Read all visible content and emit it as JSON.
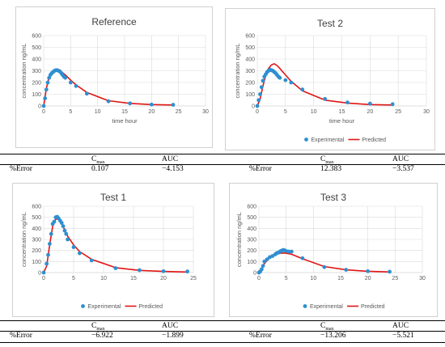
{
  "x_axis_label": "time hour",
  "y_axis_label": "concentration ng/mL",
  "legend": {
    "experimental": "Experimental",
    "predicted": "Predicted"
  },
  "colors": {
    "experimental": "#2f8fd0",
    "predicted": "#e01414"
  },
  "tables": [
    {
      "header": {
        "cmax": "Cmax",
        "auc": "AUC"
      },
      "left": {
        "label": "%Error",
        "cmax": "0.107",
        "auc": "−4.153"
      },
      "right": {
        "label": "%Error",
        "cmax": "12.383",
        "auc": "−3.537"
      }
    },
    {
      "header": {
        "cmax": "Cmax",
        "auc": "AUC"
      },
      "left": {
        "label": "%Error",
        "cmax": "−6.922",
        "auc": "−1.899"
      },
      "right": {
        "label": "%Error",
        "cmax": "−13.206",
        "auc": "−5.521"
      }
    }
  ],
  "chart_data": [
    {
      "type": "scatter",
      "title": "Reference",
      "xlabel": "time hour",
      "ylabel": "concentration ng/mL",
      "xlim": [
        0,
        30
      ],
      "ylim": [
        0,
        600
      ],
      "xticks": [
        0,
        5,
        10,
        15,
        20,
        25,
        30
      ],
      "yticks": [
        0,
        100,
        200,
        300,
        400,
        500,
        600
      ],
      "grid": true,
      "legend": "none",
      "series": [
        {
          "name": "Experimental",
          "kind": "scatter",
          "x": [
            0,
            0.25,
            0.5,
            0.75,
            1,
            1.25,
            1.5,
            1.75,
            2,
            2.25,
            2.5,
            2.75,
            3,
            3.25,
            3.5,
            3.75,
            4,
            5,
            6,
            8,
            12,
            16,
            20,
            24
          ],
          "y": [
            0,
            65,
            140,
            200,
            240,
            265,
            280,
            290,
            300,
            305,
            305,
            300,
            295,
            280,
            265,
            250,
            240,
            200,
            170,
            105,
            40,
            22,
            12,
            10
          ]
        },
        {
          "name": "Predicted",
          "kind": "line",
          "x": [
            0,
            0.5,
            1,
            1.5,
            2,
            2.5,
            3,
            3.5,
            4,
            5,
            6,
            8,
            12,
            16,
            20,
            24
          ],
          "y": [
            0,
            150,
            245,
            285,
            300,
            305,
            300,
            285,
            265,
            220,
            180,
            115,
            45,
            22,
            12,
            8
          ]
        }
      ]
    },
    {
      "type": "scatter",
      "title": "Test 2",
      "xlabel": "time hour",
      "ylabel": "concentration ng/mL",
      "xlim": [
        0,
        30
      ],
      "ylim": [
        0,
        600
      ],
      "xticks": [
        0,
        5,
        10,
        15,
        20,
        25,
        30
      ],
      "yticks": [
        0,
        100,
        200,
        300,
        400,
        500,
        600
      ],
      "grid": true,
      "legend": "bottom",
      "series": [
        {
          "name": "Experimental",
          "kind": "scatter",
          "x": [
            0,
            0.25,
            0.5,
            0.75,
            1,
            1.25,
            1.5,
            1.75,
            2,
            2.25,
            2.5,
            2.75,
            3,
            3.25,
            3.5,
            3.75,
            4,
            5,
            6,
            8,
            12,
            16,
            20,
            24
          ],
          "y": [
            0,
            50,
            100,
            160,
            215,
            250,
            270,
            290,
            300,
            310,
            305,
            300,
            290,
            280,
            265,
            250,
            240,
            220,
            200,
            140,
            60,
            30,
            20,
            15
          ]
        },
        {
          "name": "Predicted",
          "kind": "line",
          "x": [
            0,
            0.5,
            1,
            1.5,
            2,
            2.5,
            3,
            3.5,
            4,
            5,
            6,
            8,
            12,
            16,
            20,
            24
          ],
          "y": [
            0,
            60,
            170,
            260,
            320,
            350,
            360,
            345,
            320,
            265,
            210,
            130,
            50,
            25,
            12,
            8
          ]
        }
      ]
    },
    {
      "type": "scatter",
      "title": "Test 1",
      "xlabel": "",
      "ylabel": "concentration ng/mL",
      "xlim": [
        0,
        25
      ],
      "ylim": [
        0,
        600
      ],
      "xticks": [
        0,
        5,
        10,
        15,
        20,
        25
      ],
      "yticks": [
        0,
        100,
        200,
        300,
        400,
        500,
        600
      ],
      "grid": true,
      "legend": "bottom",
      "series": [
        {
          "name": "Experimental",
          "kind": "scatter",
          "x": [
            0,
            0.5,
            0.75,
            1,
            1.25,
            1.5,
            1.75,
            2,
            2.25,
            2.5,
            2.75,
            3,
            3.25,
            3.5,
            3.75,
            4,
            5,
            6,
            8,
            12,
            16,
            20,
            24
          ],
          "y": [
            0,
            80,
            160,
            260,
            350,
            440,
            460,
            500,
            505,
            490,
            470,
            450,
            420,
            380,
            350,
            300,
            230,
            175,
            110,
            40,
            22,
            12,
            10
          ]
        },
        {
          "name": "Predicted",
          "kind": "line",
          "x": [
            0,
            0.5,
            1,
            1.5,
            2,
            2.5,
            3,
            3.5,
            4,
            5,
            6,
            8,
            12,
            16,
            20,
            24
          ],
          "y": [
            0,
            60,
            250,
            420,
            485,
            480,
            440,
            390,
            330,
            250,
            190,
            120,
            45,
            20,
            10,
            5
          ]
        }
      ]
    },
    {
      "type": "scatter",
      "title": "Test 3",
      "xlabel": "",
      "ylabel": "concentration ng/mL",
      "xlim": [
        0,
        30
      ],
      "ylim": [
        0,
        600
      ],
      "xticks": [
        0,
        5,
        10,
        15,
        20,
        25,
        30
      ],
      "yticks": [
        0,
        100,
        200,
        300,
        400,
        500,
        600
      ],
      "grid": true,
      "legend": "bottom",
      "series": [
        {
          "name": "Experimental",
          "kind": "scatter",
          "x": [
            0,
            0.25,
            0.5,
            0.75,
            1,
            1.5,
            2,
            2.5,
            3,
            3.25,
            3.5,
            3.75,
            4,
            4.25,
            4.5,
            4.75,
            5,
            5.5,
            6,
            8,
            12,
            16,
            20,
            24
          ],
          "y": [
            0,
            10,
            30,
            60,
            100,
            120,
            140,
            150,
            165,
            175,
            180,
            185,
            195,
            200,
            205,
            200,
            195,
            190,
            190,
            130,
            50,
            25,
            12,
            8
          ]
        },
        {
          "name": "Predicted",
          "kind": "line",
          "x": [
            0,
            0.5,
            1,
            1.5,
            2,
            2.5,
            3,
            3.5,
            4,
            4.5,
            5,
            6,
            8,
            12,
            16,
            20,
            24
          ],
          "y": [
            0,
            40,
            80,
            110,
            135,
            150,
            162,
            170,
            175,
            177,
            175,
            165,
            125,
            55,
            25,
            12,
            6
          ]
        }
      ]
    }
  ]
}
